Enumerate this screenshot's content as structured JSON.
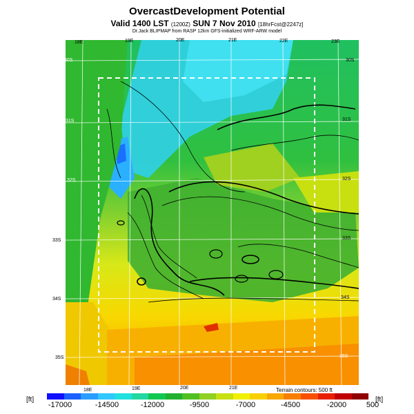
{
  "header": {
    "title": "OvercastDevelopment Potential",
    "subtitle_main": "Valid 1400 LST",
    "subtitle_small1": "(1200Z)",
    "subtitle_date": "SUN 7 Nov 2010",
    "subtitle_small2": "[18hrFcst@2247z]",
    "credit": "Dr.Jack BLIPMAP from RASP 12km GFS-initialized WRF-ARW model"
  },
  "map": {
    "lon_top": [
      "18E",
      "19E",
      "20E",
      "21E",
      "22E",
      "23E"
    ],
    "lon_bottom": [
      "18E",
      "19E",
      "20E",
      "21E"
    ],
    "lat_left": [
      "30S",
      "31S",
      "32S",
      "33S",
      "34S",
      "35S"
    ],
    "lat_right": [
      "30S",
      "31S",
      "32S",
      "33S",
      "34S",
      "35S"
    ],
    "terrain_note": "Terrain contours: 500 ft"
  },
  "legend": {
    "unit_left": "[ft]",
    "unit_right": "[ft]",
    "ticks": [
      "-17000",
      "-14500",
      "-12000",
      "-9500",
      "-7000",
      "-4500",
      "-2000",
      "500"
    ],
    "colors": [
      "#1010ff",
      "#1a60ff",
      "#2a9dff",
      "#30c8ff",
      "#20e0e0",
      "#20d8a0",
      "#10c850",
      "#20b030",
      "#50c020",
      "#90d020",
      "#c8e010",
      "#f0f000",
      "#f8d000",
      "#f8a800",
      "#f88000",
      "#f85000",
      "#e82000",
      "#c00000",
      "#900000"
    ]
  }
}
